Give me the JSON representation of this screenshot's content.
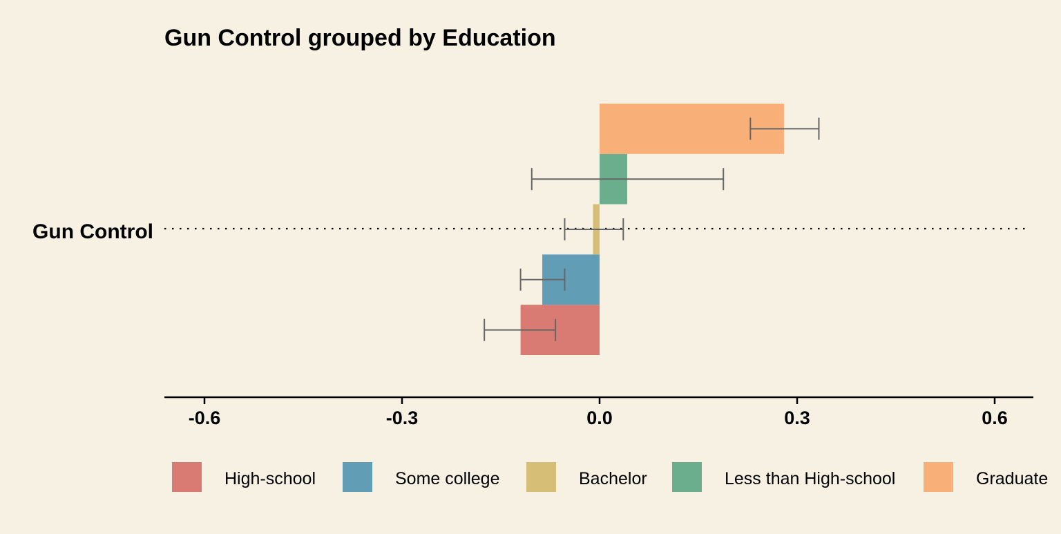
{
  "chart_data": {
    "type": "bar",
    "orientation": "horizontal",
    "title": "Gun Control grouped by Education",
    "category_label": "Gun Control",
    "xlabel": "",
    "ylabel": "",
    "xlim": [
      -0.66,
      0.66
    ],
    "x_ticks": [
      -0.6,
      -0.3,
      0.0,
      0.3,
      0.6
    ],
    "x_tick_labels": [
      "-0.6",
      "-0.3",
      "0.0",
      "0.3",
      "0.6"
    ],
    "grid": false,
    "reference_line": "dotted horizontal line at the category",
    "legend_position": "bottom",
    "series": [
      {
        "name": "High-school",
        "value": -0.12,
        "ci": [
          -0.175,
          -0.067
        ],
        "color": "#d97b72"
      },
      {
        "name": "Some college",
        "value": -0.087,
        "ci": [
          -0.12,
          -0.053
        ],
        "color": "#629db6"
      },
      {
        "name": "Bachelor",
        "value": -0.01,
        "ci": [
          -0.053,
          0.036
        ],
        "color": "#d6be76"
      },
      {
        "name": "Less than High-school",
        "value": 0.042,
        "ci": [
          -0.103,
          0.188
        ],
        "color": "#6aae8d"
      },
      {
        "name": "Graduate",
        "value": 0.28,
        "ci": [
          0.229,
          0.333
        ],
        "color": "#f8af78"
      }
    ]
  }
}
